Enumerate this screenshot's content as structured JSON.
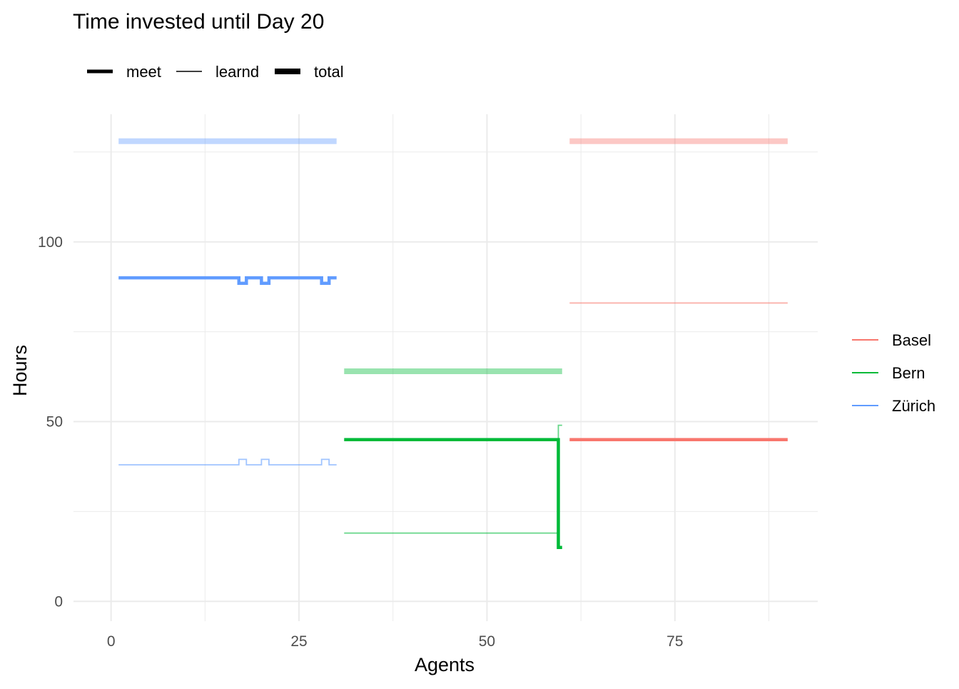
{
  "chart_data": {
    "type": "line",
    "title": "Time invested until Day 20",
    "xlabel": "Agents",
    "ylabel": "Hours",
    "xlim": [
      -5,
      94
    ],
    "ylim": [
      -5.5,
      135.5
    ],
    "x_ticks": [
      0,
      25,
      50,
      75
    ],
    "y_ticks": [
      0,
      50,
      100
    ],
    "grid": true,
    "linetype_legend": {
      "position": "top-left",
      "entries": [
        {
          "label": "meet",
          "weight": "thick"
        },
        {
          "label": "learnd",
          "weight": "thin"
        },
        {
          "label": "total",
          "weight": "thickest"
        }
      ]
    },
    "color_legend": {
      "position": "right",
      "entries": [
        {
          "label": "Basel",
          "color": "#F8766D"
        },
        {
          "label": "Bern",
          "color": "#00BA38"
        },
        {
          "label": "Zürich",
          "color": "#619CFF"
        }
      ]
    },
    "series": [
      {
        "group": "Zürich",
        "measure": "total",
        "color": "#619CFF",
        "points": [
          [
            1,
            128
          ],
          [
            30,
            128
          ]
        ]
      },
      {
        "group": "Zürich",
        "measure": "meet",
        "color": "#619CFF",
        "points": [
          [
            1,
            90
          ],
          [
            17,
            90
          ],
          [
            17,
            88.5
          ],
          [
            18,
            88.5
          ],
          [
            18,
            90
          ],
          [
            20,
            90
          ],
          [
            20,
            88.5
          ],
          [
            21,
            88.5
          ],
          [
            21,
            90
          ],
          [
            28,
            90
          ],
          [
            28,
            88.5
          ],
          [
            29,
            88.5
          ],
          [
            29,
            90
          ],
          [
            30,
            90
          ]
        ]
      },
      {
        "group": "Zürich",
        "measure": "learnd",
        "color": "#619CFF",
        "points": [
          [
            1,
            38
          ],
          [
            17,
            38
          ],
          [
            17,
            39.5
          ],
          [
            18,
            39.5
          ],
          [
            18,
            38
          ],
          [
            20,
            38
          ],
          [
            20,
            39.5
          ],
          [
            21,
            39.5
          ],
          [
            21,
            38
          ],
          [
            28,
            38
          ],
          [
            28,
            39.5
          ],
          [
            29,
            39.5
          ],
          [
            29,
            38
          ],
          [
            30,
            38
          ]
        ]
      },
      {
        "group": "Bern",
        "measure": "total",
        "color": "#00BA38",
        "points": [
          [
            31,
            64
          ],
          [
            60,
            64
          ]
        ]
      },
      {
        "group": "Bern",
        "measure": "meet",
        "color": "#00BA38",
        "points": [
          [
            31,
            45
          ],
          [
            59.5,
            45
          ],
          [
            59.5,
            15
          ],
          [
            60,
            15
          ]
        ]
      },
      {
        "group": "Bern",
        "measure": "learnd",
        "color": "#00BA38",
        "points": [
          [
            31,
            19
          ],
          [
            59.5,
            19
          ],
          [
            59.5,
            49
          ],
          [
            60,
            49
          ]
        ]
      },
      {
        "group": "Basel",
        "measure": "total",
        "color": "#F8766D",
        "points": [
          [
            61,
            128
          ],
          [
            90,
            128
          ]
        ]
      },
      {
        "group": "Basel",
        "measure": "meet",
        "color": "#F8766D",
        "points": [
          [
            61,
            45
          ],
          [
            90,
            45
          ]
        ]
      },
      {
        "group": "Basel",
        "measure": "learnd",
        "color": "#F8766D",
        "points": [
          [
            61,
            83
          ],
          [
            90,
            83
          ]
        ]
      }
    ]
  }
}
